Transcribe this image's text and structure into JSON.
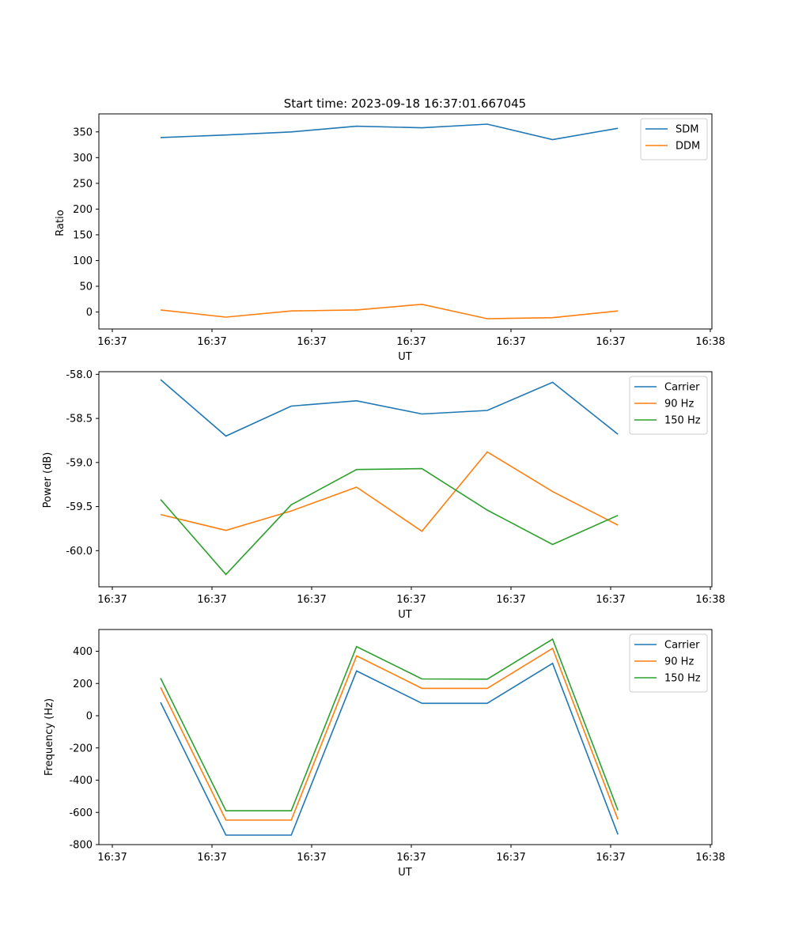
{
  "chart_data": [
    {
      "type": "line",
      "title": "Start time: 2023-09-18 16:37:01.667045",
      "xlabel": "UT",
      "ylabel": "Ratio",
      "x_ticks": [
        "16:37",
        "16:37",
        "16:37",
        "16:37",
        "16:37",
        "16:37",
        "16:38"
      ],
      "y_ticks": [
        0,
        50,
        100,
        150,
        200,
        250,
        300,
        350
      ],
      "ylim": [
        -33,
        385
      ],
      "x_points": 8,
      "legend": "top-right",
      "series": [
        {
          "name": "SDM",
          "color": "#1f77b4",
          "values": [
            339,
            344,
            350,
            361,
            358,
            365,
            335,
            357
          ]
        },
        {
          "name": "DDM",
          "color": "#ff7f0e",
          "values": [
            4,
            -10,
            2,
            4,
            15,
            -13,
            -11,
            2
          ]
        }
      ]
    },
    {
      "type": "line",
      "title": "",
      "xlabel": "UT",
      "ylabel": "Power (dB)",
      "x_ticks": [
        "16:37",
        "16:37",
        "16:37",
        "16:37",
        "16:37",
        "16:37",
        "16:38"
      ],
      "y_ticks": [
        "-58.0",
        "-58.5",
        "-59.0",
        "-59.5",
        "-60.0"
      ],
      "y_tick_values": [
        -58.0,
        -58.5,
        -59.0,
        -59.5,
        -60.0
      ],
      "ylim": [
        -60.41,
        -57.97
      ],
      "x_points": 8,
      "legend": "top-right",
      "series": [
        {
          "name": "Carrier",
          "color": "#1f77b4",
          "values": [
            -58.06,
            -58.7,
            -58.36,
            -58.3,
            -58.45,
            -58.41,
            -58.09,
            -58.68
          ]
        },
        {
          "name": "90 Hz",
          "color": "#ff7f0e",
          "values": [
            -59.59,
            -59.77,
            -59.55,
            -59.28,
            -59.78,
            -58.88,
            -59.33,
            -59.71
          ]
        },
        {
          "name": "150 Hz",
          "color": "#2ca02c",
          "values": [
            -59.42,
            -60.27,
            -59.48,
            -59.08,
            -59.07,
            -59.54,
            -59.93,
            -59.6
          ]
        }
      ]
    },
    {
      "type": "line",
      "title": "",
      "xlabel": "UT",
      "ylabel": "Frequency (Hz)",
      "x_ticks": [
        "16:37",
        "16:37",
        "16:37",
        "16:37",
        "16:37",
        "16:37",
        "16:38"
      ],
      "y_ticks": [
        400,
        200,
        0,
        -200,
        -400,
        -600,
        -800
      ],
      "ylim": [
        -800,
        535
      ],
      "x_points": 8,
      "legend": "top-right",
      "series": [
        {
          "name": "Carrier",
          "color": "#1f77b4",
          "values": [
            83,
            -741,
            -741,
            278,
            77,
            77,
            325,
            -737
          ]
        },
        {
          "name": "90 Hz",
          "color": "#ff7f0e",
          "values": [
            176,
            -648,
            -648,
            371,
            170,
            170,
            418,
            -644
          ]
        },
        {
          "name": "150 Hz",
          "color": "#2ca02c",
          "values": [
            233,
            -590,
            -590,
            429,
            228,
            227,
            475,
            -587
          ]
        }
      ]
    }
  ]
}
